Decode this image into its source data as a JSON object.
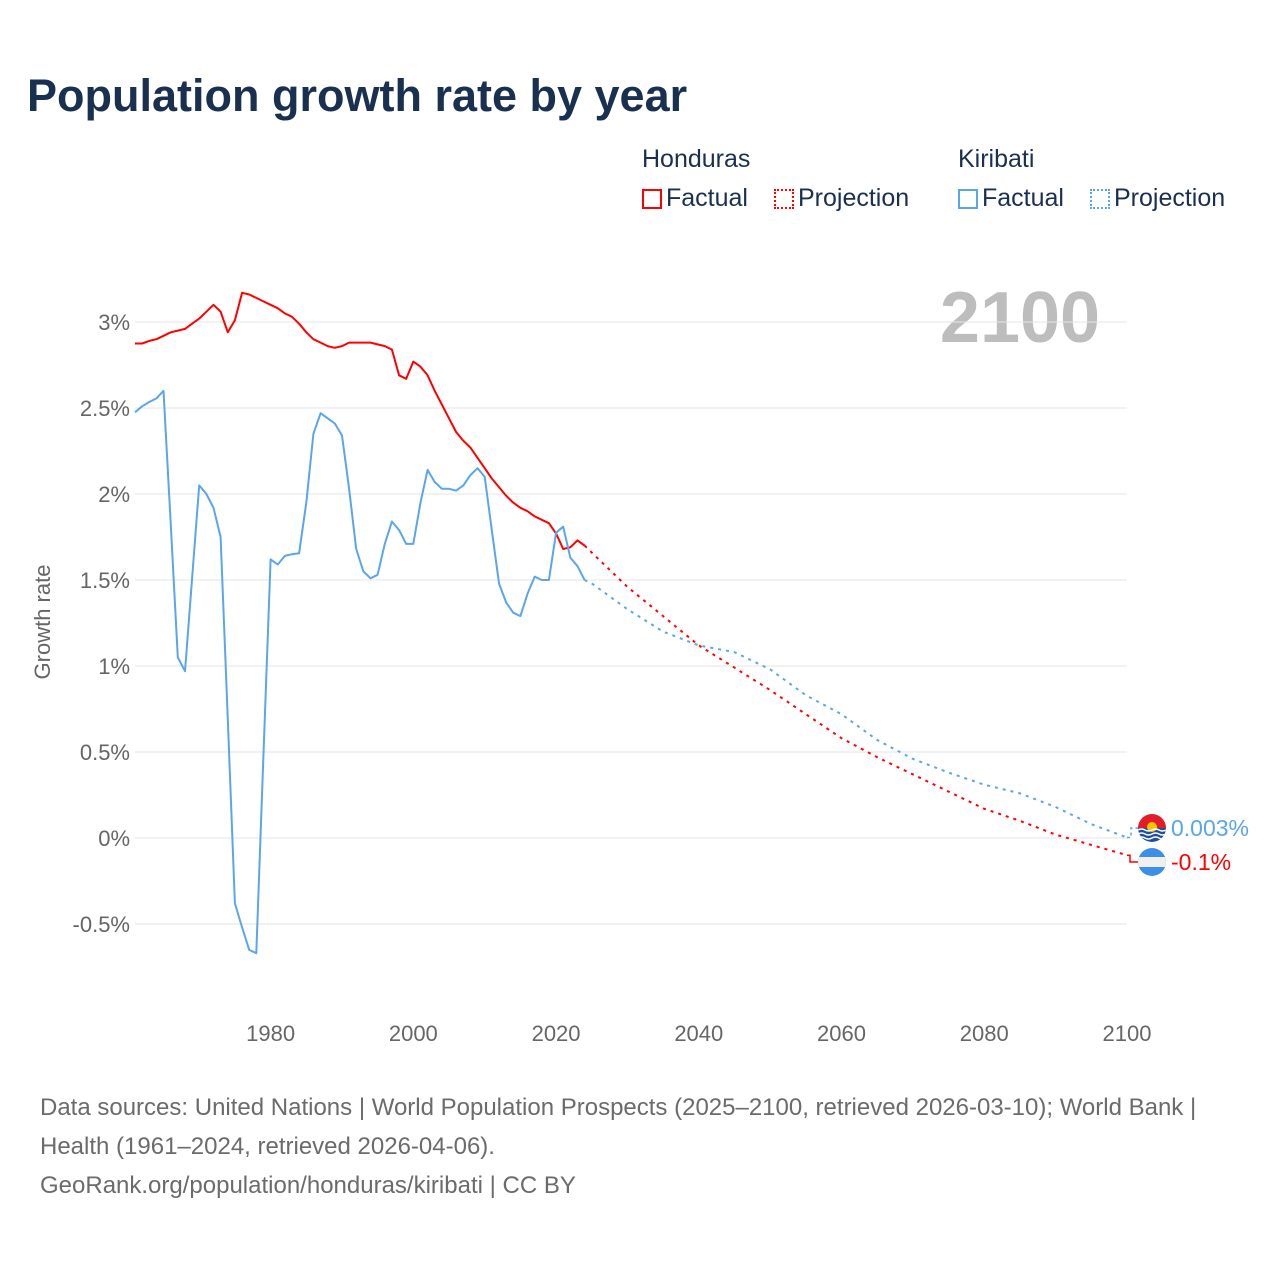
{
  "title": "Population growth rate by year",
  "legend": {
    "groups": [
      {
        "name": "Honduras",
        "factual": "Factual",
        "projection": "Projection",
        "color": "#ff0000"
      },
      {
        "name": "Kiribati",
        "factual": "Factual",
        "projection": "Projection",
        "color": "#5aa5ec"
      }
    ]
  },
  "current_year_label": "2100",
  "footer": {
    "sources": "Data sources: United Nations | World Population Prospects (2025–2100, retrieved 2026-03-10); World Bank | Health (1961–2024, retrieved 2026-04-06).",
    "credit": "GeoRank.org/population/honduras/kiribati | CC BY"
  },
  "chart_data": {
    "type": "line",
    "title": "Population growth rate by year",
    "xlabel": "",
    "ylabel": "Growth rate",
    "xlim": [
      1961,
      2100
    ],
    "ylim": [
      -0.75,
      3.3
    ],
    "grid": true,
    "x_ticks": [
      "1980",
      "2000",
      "2020",
      "2040",
      "2060",
      "2080",
      "2100"
    ],
    "x_tick_values": [
      1980,
      2000,
      2020,
      2040,
      2060,
      2080,
      2100
    ],
    "y_ticks": [
      "-0.5%",
      "0%",
      "0.5%",
      "1%",
      "1.5%",
      "2%",
      "2.5%",
      "3%"
    ],
    "y_tick_values": [
      -0.5,
      0,
      0.5,
      1,
      1.5,
      2,
      2.5,
      3
    ],
    "end_labels": {
      "Kiribati": "0.003%",
      "Honduras": "-0.1%"
    },
    "series": [
      {
        "name": "Honduras Factual",
        "color": "#ff0000",
        "style": "solid",
        "x_start": 1961,
        "values": [
          2.875,
          2.875,
          2.89,
          2.9,
          2.92,
          2.94,
          2.95,
          2.96,
          2.99,
          3.02,
          3.06,
          3.1,
          3.06,
          2.94,
          3.01,
          3.17,
          3.16,
          3.14,
          3.12,
          3.1,
          3.08,
          3.05,
          3.03,
          2.99,
          2.94,
          2.9,
          2.88,
          2.86,
          2.85,
          2.86,
          2.88,
          2.88,
          2.88,
          2.88,
          2.87,
          2.86,
          2.84,
          2.69,
          2.67,
          2.77,
          2.74,
          2.69,
          2.6,
          2.52,
          2.44,
          2.36,
          2.31,
          2.27,
          2.21,
          2.15,
          2.09,
          2.04,
          1.99,
          1.95,
          1.92,
          1.9,
          1.87,
          1.85,
          1.83,
          1.77,
          1.68,
          1.69,
          1.73,
          1.7
        ]
      },
      {
        "name": "Kiribati Factual",
        "color": "#5aa5ec",
        "style": "solid",
        "x_start": 1961,
        "values": [
          2.475,
          2.51,
          2.535,
          2.556,
          2.6,
          1.83,
          1.05,
          0.97,
          1.51,
          2.05,
          2.0,
          1.92,
          1.75,
          0.69,
          -0.38,
          -0.52,
          -0.65,
          -0.67,
          0.49,
          1.62,
          1.59,
          1.64,
          1.65,
          1.655,
          1.95,
          2.35,
          2.47,
          2.44,
          2.41,
          2.34,
          2.03,
          1.68,
          1.55,
          1.51,
          1.53,
          1.71,
          1.84,
          1.79,
          1.71,
          1.71,
          1.95,
          2.14,
          2.07,
          2.03,
          2.03,
          2.02,
          2.05,
          2.11,
          2.15,
          2.1,
          1.79,
          1.48,
          1.37,
          1.31,
          1.29,
          1.42,
          1.52,
          1.5,
          1.5,
          1.775,
          1.81,
          1.63,
          1.58,
          1.5
        ]
      },
      {
        "name": "Honduras Projection",
        "color": "#ff0000",
        "style": "dotted",
        "x": [
          2024,
          2025,
          2030,
          2035,
          2040,
          2045,
          2050,
          2055,
          2060,
          2065,
          2070,
          2075,
          2080,
          2085,
          2090,
          2095,
          2100
        ],
        "values": [
          1.7,
          1.66,
          1.46,
          1.29,
          1.12,
          0.99,
          0.86,
          0.72,
          0.58,
          0.47,
          0.37,
          0.27,
          0.17,
          0.1,
          0.02,
          -0.04,
          -0.1
        ]
      },
      {
        "name": "Kiribati Projection",
        "color": "#5aa5ec",
        "style": "dotted",
        "x": [
          2024,
          2025,
          2030,
          2035,
          2040,
          2045,
          2050,
          2055,
          2060,
          2065,
          2070,
          2075,
          2080,
          2085,
          2090,
          2095,
          2100
        ],
        "values": [
          1.5,
          1.48,
          1.33,
          1.2,
          1.12,
          1.08,
          0.98,
          0.83,
          0.72,
          0.57,
          0.46,
          0.38,
          0.31,
          0.26,
          0.18,
          0.08,
          0.003
        ]
      }
    ]
  }
}
